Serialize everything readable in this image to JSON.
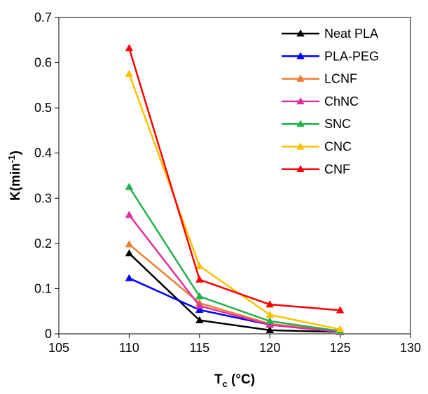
{
  "chart_data": {
    "type": "line",
    "xlabel": {
      "main": "T",
      "sub": "c",
      "unit": " (°C)"
    },
    "ylabel": {
      "main": "K(min",
      "sup": "-1",
      "end": ")"
    },
    "xlim": [
      105,
      130
    ],
    "ylim": [
      0,
      0.7
    ],
    "xticks": [
      105,
      110,
      115,
      120,
      125,
      130
    ],
    "yticks": [
      0,
      0.1,
      0.2,
      0.3,
      0.4,
      0.5,
      0.6,
      0.7
    ],
    "grid": false,
    "legend_position": "top-right",
    "x": [
      110,
      115,
      120,
      125
    ],
    "series": [
      {
        "name": "Neat PLA",
        "color": "#000000",
        "values": [
          0.178,
          0.03,
          0.008,
          0.004
        ]
      },
      {
        "name": "PLA-PEG",
        "color": "#0000ff",
        "values": [
          0.123,
          0.053,
          0.02,
          0.004
        ]
      },
      {
        "name": "LCNF",
        "color": "#ed7d31",
        "values": [
          0.198,
          0.068,
          0.022,
          0.005
        ]
      },
      {
        "name": "ChNC",
        "color": "#e0309e",
        "values": [
          0.263,
          0.062,
          0.02,
          0.004
        ]
      },
      {
        "name": "SNC",
        "color": "#22b14c",
        "values": [
          0.325,
          0.083,
          0.028,
          0.006
        ]
      },
      {
        "name": "CNC",
        "color": "#ffc000",
        "values": [
          0.575,
          0.15,
          0.042,
          0.01
        ]
      },
      {
        "name": "CNF",
        "color": "#ff0000",
        "values": [
          0.632,
          0.12,
          0.065,
          0.052
        ]
      }
    ]
  }
}
